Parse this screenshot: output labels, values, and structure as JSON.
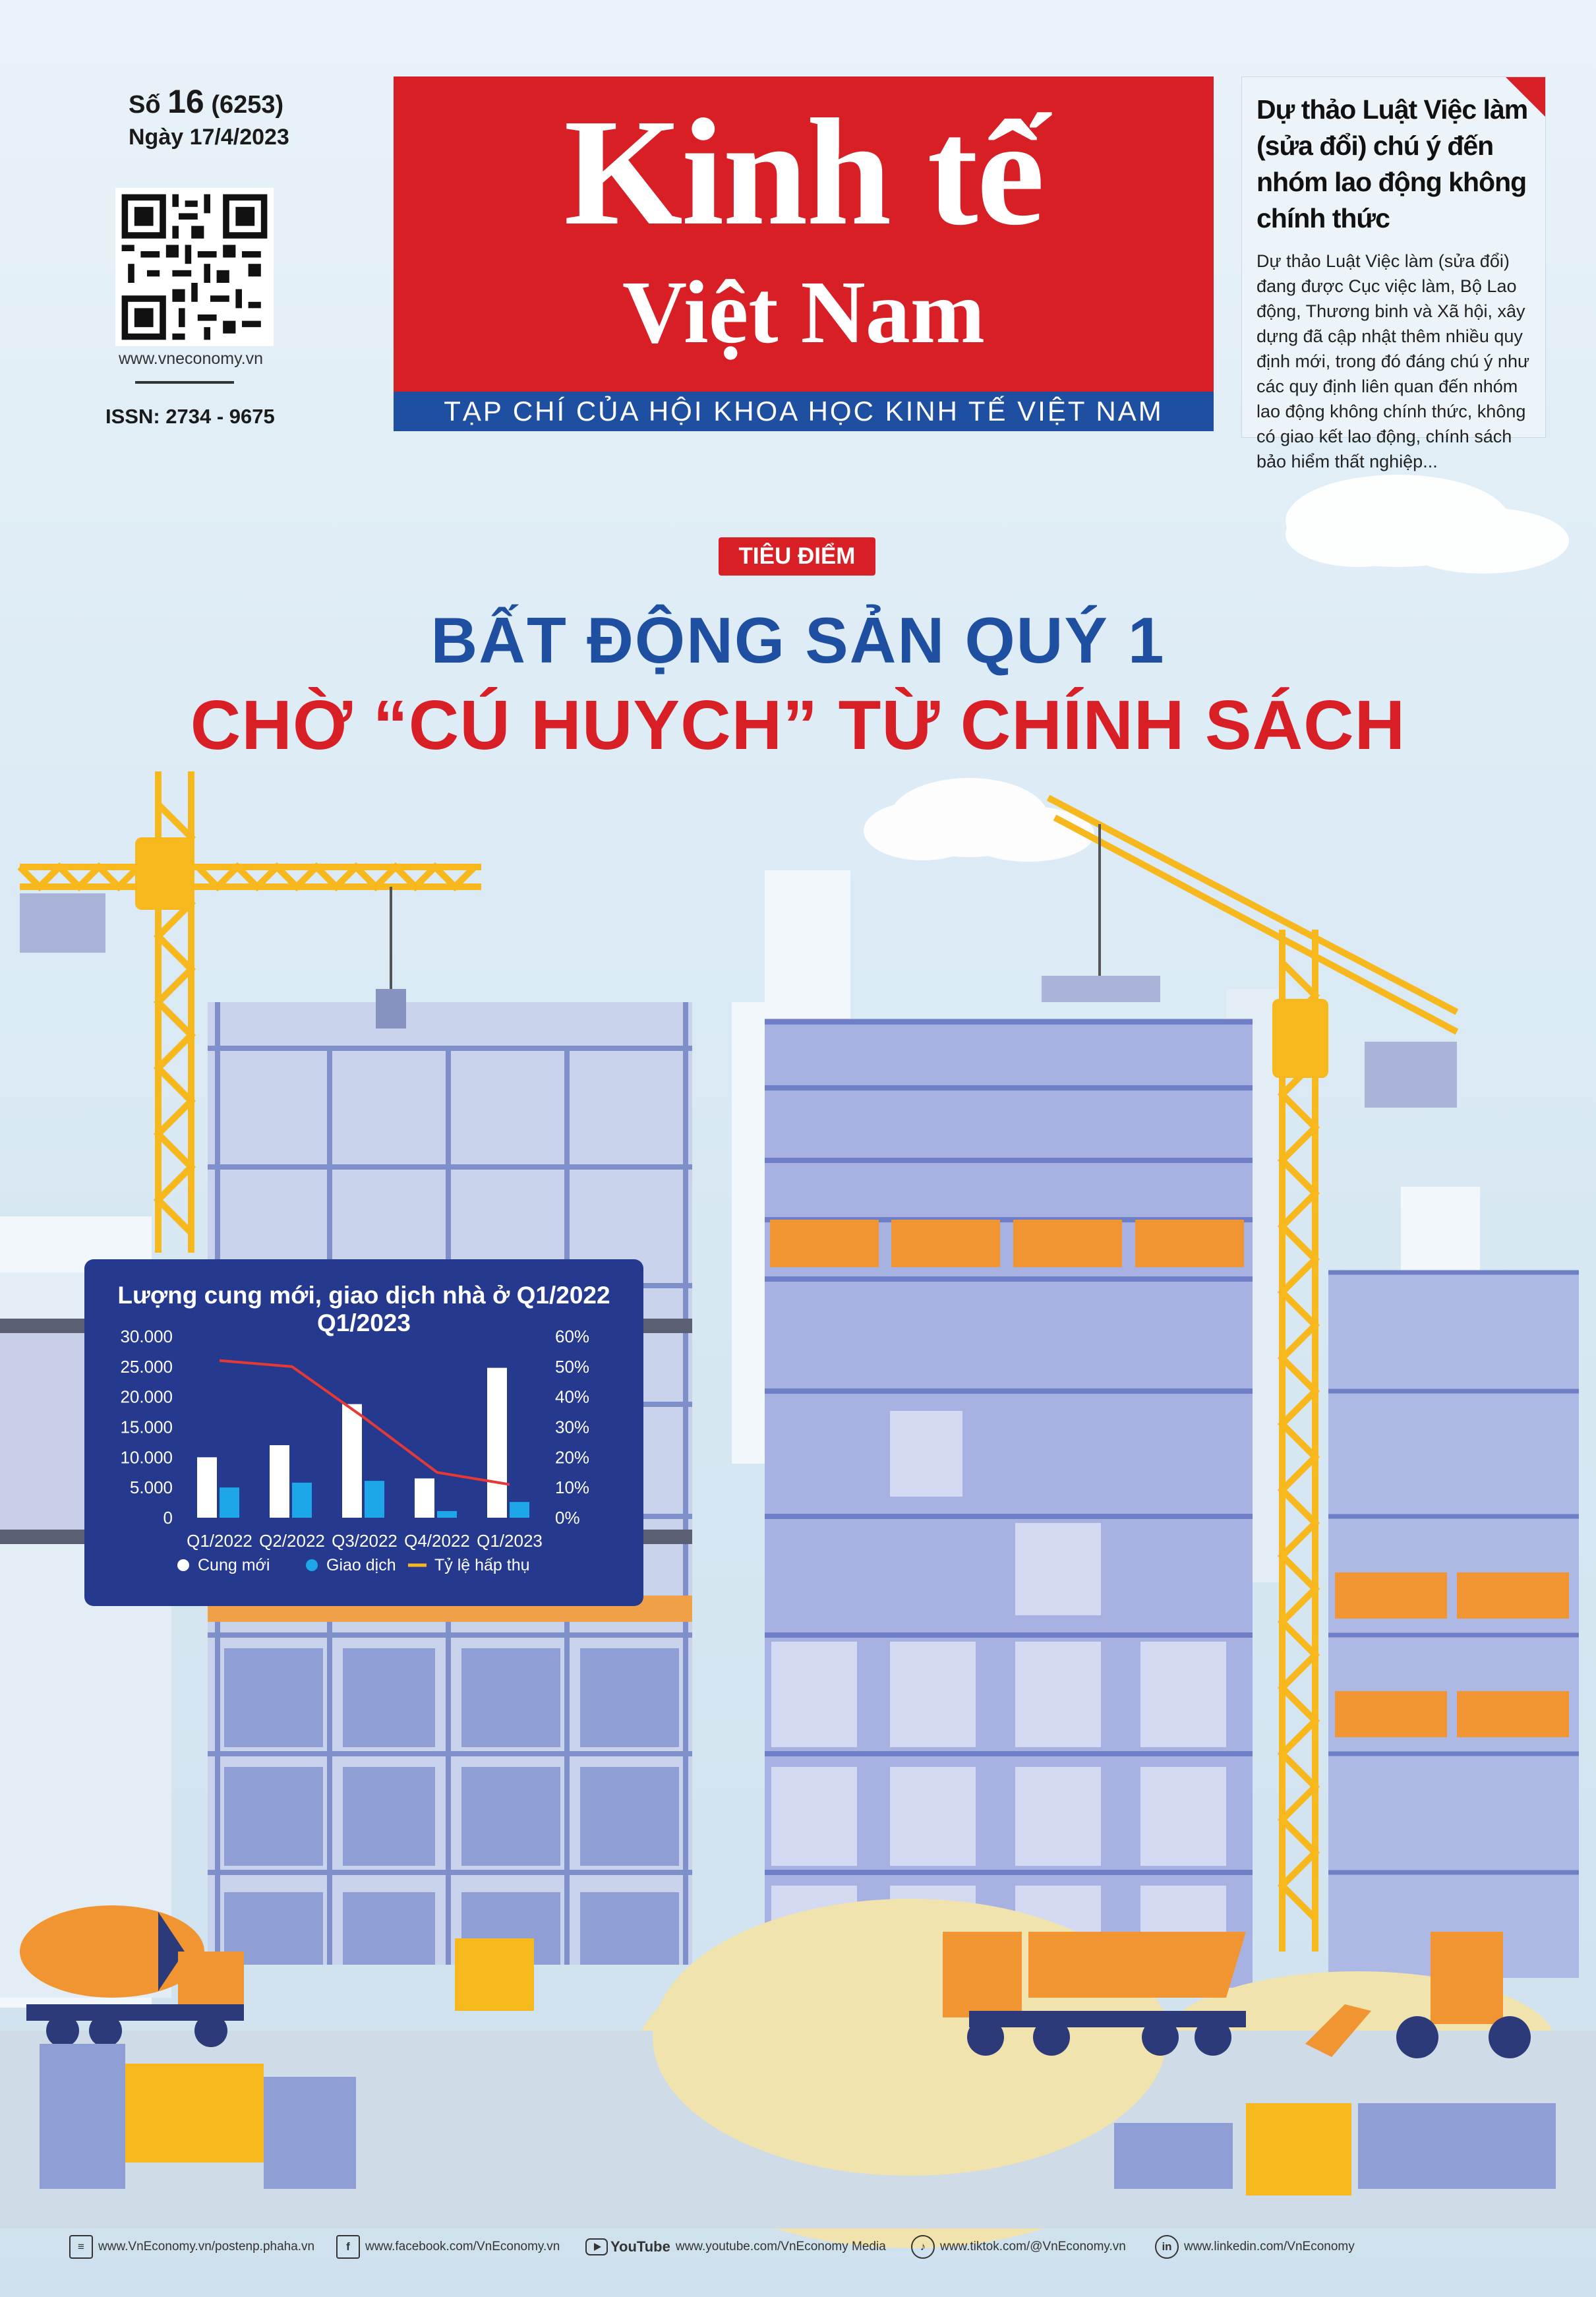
{
  "issue": {
    "number_prefix": "Số",
    "number": "16",
    "serial": "(6253)",
    "date": "Ngày 17/4/2023",
    "website": "www.vneconomy.vn",
    "issn": "ISSN: 2734 - 9675"
  },
  "masthead": {
    "title_line1": "Kinh tế",
    "title_line2": "Việt Nam",
    "subtitle": "TẠP CHÍ CỦA HỘI KHOA HỌC KINH TẾ VIỆT NAM"
  },
  "teaser": {
    "headline": "Dự thảo Luật Việc làm (sửa đổi) chú ý đến nhóm lao động không chính thức",
    "body": "Dự thảo Luật Việc làm (sửa đổi) đang được Cục việc làm, Bộ Lao động, Thương binh và Xã hội, xây dựng đã cập nhật thêm nhiều quy định mới, trong đó đáng chú ý như các quy định liên quan đến nhóm lao động không chính thức, không có giao kết lao động, chính sách bảo hiểm thất nghiệp..."
  },
  "feature": {
    "tag": "TIÊU ĐIỂM",
    "headline_line1": "BẤT ĐỘNG SẢN QUÝ 1",
    "headline_line2": "CHỜ “CÚ HUYCH” TỪ CHÍNH SÁCH"
  },
  "colors": {
    "brand_red": "#d91f26",
    "brand_blue": "#1f4fa0",
    "chart_panel": "#25398e",
    "series_supply": "#ffffff",
    "series_transactions": "#1ea7e8",
    "series_absorption": "#e53935"
  },
  "chart_data": {
    "type": "bar",
    "title": "Lượng cung mới, giao dịch nhà ở Q1/2022 Q1/2023",
    "categories": [
      "Q1/2022",
      "Q2/2022",
      "Q3/2022",
      "Q4/2022",
      "Q1/2023"
    ],
    "series": [
      {
        "name": "Cung mới",
        "type": "bar",
        "axis": "left",
        "values": [
          10000,
          12000,
          18800,
          6500,
          24800
        ]
      },
      {
        "name": "Giao dịch",
        "type": "bar",
        "axis": "left",
        "values": [
          5000,
          5800,
          6100,
          1100,
          2600
        ]
      },
      {
        "name": "Tỷ lệ hấp thụ",
        "type": "line",
        "axis": "right",
        "values": [
          52,
          50,
          33,
          15,
          11
        ]
      }
    ],
    "y_left": {
      "ylim": [
        0,
        30000
      ],
      "ticks": [
        "0",
        "5.000",
        "10.000",
        "15.000",
        "20.000",
        "25.000",
        "30.000"
      ]
    },
    "y_right": {
      "ylim": [
        0,
        60
      ],
      "ticks": [
        "0%",
        "10%",
        "20%",
        "30%",
        "40%",
        "50%",
        "60%"
      ]
    },
    "legend": [
      "Cung mới",
      "Giao dịch",
      "Tỷ lệ hấp thụ"
    ],
    "legend_position": "bottom",
    "grid": false
  },
  "footer": [
    {
      "icon": "newspaper-icon",
      "glyph": "≡",
      "text": "www.VnEconomy.vn/postenp.phaha.vn"
    },
    {
      "icon": "facebook-icon",
      "glyph": "f",
      "text": "www.facebook.com/VnEconomy.vn"
    },
    {
      "icon": "youtube-icon",
      "glyph": "YouTube",
      "text": "www.youtube.com/VnEconomy Media"
    },
    {
      "icon": "tiktok-icon",
      "glyph": "♪",
      "text": "www.tiktok.com/@VnEconomy.vn"
    },
    {
      "icon": "linkedin-icon",
      "glyph": "in",
      "text": "www.linkedin.com/VnEconomy"
    }
  ]
}
